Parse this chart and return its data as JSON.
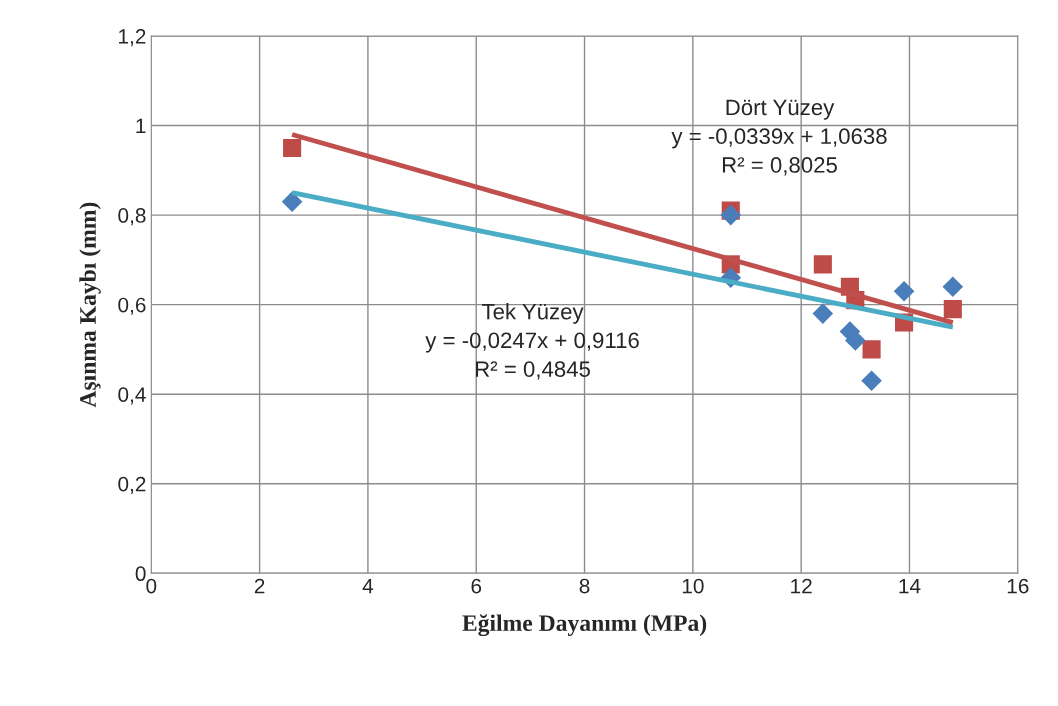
{
  "chart_data": {
    "type": "scatter",
    "xlabel": "Eğilme Dayanımı (MPa)",
    "ylabel": "Aşınma Kaybı (mm)",
    "xlim": [
      0,
      16
    ],
    "xticks": [
      0,
      2,
      4,
      6,
      8,
      10,
      12,
      14,
      16
    ],
    "ylim": [
      0,
      1.2
    ],
    "yticks": [
      0,
      {
        "value": 0.2,
        "label": "0,2"
      },
      {
        "value": 0.4,
        "label": "0,4"
      },
      {
        "value": 0.6,
        "label": "0,6"
      },
      {
        "value": 0.8,
        "label": "0,8"
      },
      1,
      {
        "value": 1.2,
        "label": "1,2"
      }
    ],
    "grid": true,
    "legend": false,
    "series": [
      {
        "marker": "diamond",
        "color": "#4a7ebb",
        "x": [
          2.6,
          10.7,
          10.7,
          12.4,
          12.9,
          13.0,
          13.3,
          13.9,
          14.8
        ],
        "values": [
          0.83,
          0.8,
          0.66,
          0.58,
          0.54,
          0.52,
          0.43,
          0.63,
          0.64
        ]
      },
      {
        "marker": "square",
        "color": "#be4b48",
        "x": [
          2.6,
          10.7,
          10.7,
          12.4,
          12.9,
          13.0,
          13.3,
          13.9,
          14.8
        ],
        "values": [
          0.95,
          0.81,
          0.69,
          0.69,
          0.64,
          0.61,
          0.5,
          0.56,
          0.59
        ]
      },
      {
        "type": "line",
        "marker": "none",
        "color": "#4bacc6",
        "x": [
          2.6,
          14.8
        ],
        "values": [
          0.85,
          0.55
        ]
      },
      {
        "type": "line",
        "marker": "none",
        "color": "#c0504d",
        "x": [
          2.6,
          14.8
        ],
        "values": [
          0.98,
          0.56
        ]
      }
    ],
    "annotations": [
      "Dört Yüzey\ny = -0,0339x + 1,0638\nR² = 0,8025",
      "Tek Yüzey\ny = -0,0247x + 0,9116\nR² = 0,4845"
    ]
  }
}
